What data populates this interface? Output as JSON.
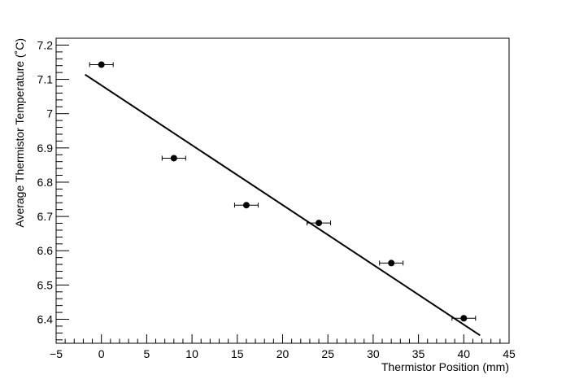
{
  "chart_data": {
    "type": "scatter",
    "title": "",
    "xlabel": "Thermistor Position (mm)",
    "ylabel": "Average Thermistor Temperature (˚C)",
    "xlim": [
      -5,
      45
    ],
    "ylim": [
      6.33,
      7.22
    ],
    "x_ticks": [
      -5,
      0,
      5,
      10,
      15,
      20,
      25,
      30,
      35,
      40,
      45
    ],
    "x_tick_labels": [
      "−5",
      "0",
      "5",
      "10",
      "15",
      "20",
      "25",
      "30",
      "35",
      "40",
      "45"
    ],
    "y_ticks": [
      6.4,
      6.5,
      6.6,
      6.7,
      6.8,
      6.9,
      7.0,
      7.1,
      7.2
    ],
    "y_tick_labels": [
      "6.4",
      "6.5",
      "6.6",
      "6.7",
      "6.8",
      "6.9",
      "7",
      "7.1",
      "7.2"
    ],
    "grid": false,
    "series": [
      {
        "points": [
          {
            "x": 0,
            "y": 7.143,
            "xerr": 1.3
          },
          {
            "x": 8,
            "y": 6.87,
            "xerr": 1.3
          },
          {
            "x": 16,
            "y": 6.733,
            "xerr": 1.3
          },
          {
            "x": 24,
            "y": 6.681,
            "xerr": 1.3
          },
          {
            "x": 32,
            "y": 6.564,
            "xerr": 1.3
          },
          {
            "x": 40,
            "y": 6.403,
            "xerr": 1.3
          }
        ]
      }
    ],
    "fit_line": {
      "x": [
        -1.8,
        41.8
      ],
      "y": [
        7.114,
        6.353
      ]
    }
  }
}
